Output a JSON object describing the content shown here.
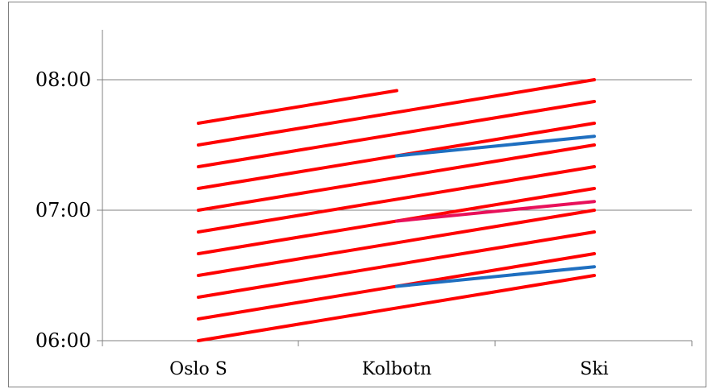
{
  "chart_data": {
    "type": "line",
    "title": "",
    "xlabel": "",
    "ylabel": "",
    "categories": [
      "Oslo S",
      "Kolbotn",
      "Ski"
    ],
    "y_axis": {
      "ticks": [
        "06:00",
        "07:00",
        "08:00"
      ],
      "range_minutes": [
        360,
        500
      ]
    },
    "grid": "horizontal",
    "legend": "none",
    "colors": {
      "local": "#ff0000",
      "blue": "#1f6fc0",
      "magenta": "#e8105a",
      "axis": "#808080",
      "frame": "#7f7f7f"
    },
    "series": [
      {
        "color_key": "local",
        "points": [
          [
            0,
            "06:00"
          ],
          [
            2,
            "06:30"
          ]
        ]
      },
      {
        "color_key": "local",
        "points": [
          [
            0,
            "06:10"
          ],
          [
            2,
            "06:40"
          ]
        ]
      },
      {
        "color_key": "local",
        "points": [
          [
            0,
            "06:20"
          ],
          [
            2,
            "06:50"
          ]
        ]
      },
      {
        "color_key": "local",
        "points": [
          [
            0,
            "06:30"
          ],
          [
            2,
            "07:00"
          ]
        ]
      },
      {
        "color_key": "local",
        "points": [
          [
            0,
            "06:40"
          ],
          [
            2,
            "07:10"
          ]
        ]
      },
      {
        "color_key": "local",
        "points": [
          [
            0,
            "06:50"
          ],
          [
            2,
            "07:20"
          ]
        ]
      },
      {
        "color_key": "local",
        "points": [
          [
            0,
            "07:00"
          ],
          [
            2,
            "07:30"
          ]
        ]
      },
      {
        "color_key": "local",
        "points": [
          [
            0,
            "07:10"
          ],
          [
            2,
            "07:40"
          ]
        ]
      },
      {
        "color_key": "local",
        "points": [
          [
            0,
            "07:20"
          ],
          [
            2,
            "07:50"
          ]
        ]
      },
      {
        "color_key": "local",
        "points": [
          [
            0,
            "07:30"
          ],
          [
            2,
            "08:00"
          ]
        ]
      },
      {
        "color_key": "local",
        "points": [
          [
            0,
            "07:40"
          ],
          [
            1,
            "07:55"
          ]
        ]
      },
      {
        "color_key": "blue",
        "points": [
          [
            1,
            "06:25"
          ],
          [
            2,
            "06:34"
          ]
        ]
      },
      {
        "color_key": "magenta",
        "points": [
          [
            1,
            "06:55"
          ],
          [
            2,
            "07:04"
          ]
        ]
      },
      {
        "color_key": "blue",
        "points": [
          [
            1,
            "07:25"
          ],
          [
            2,
            "07:34"
          ]
        ]
      }
    ]
  }
}
